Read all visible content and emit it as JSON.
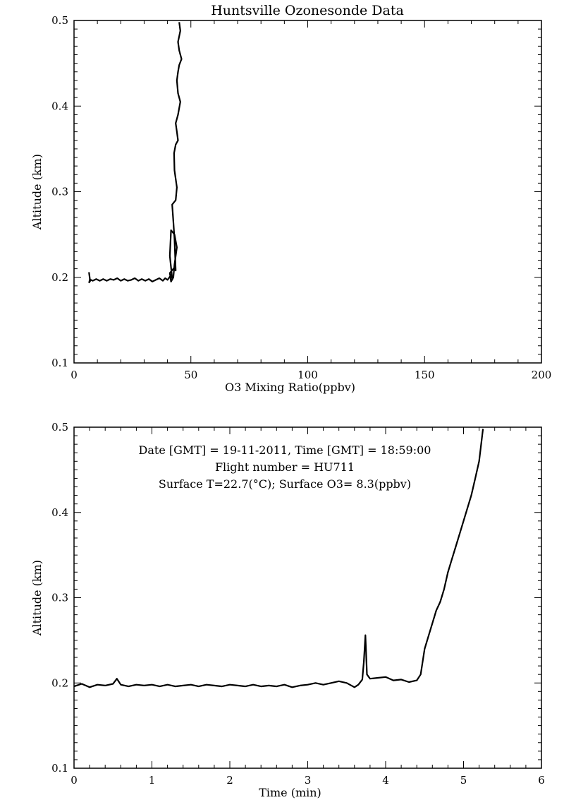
{
  "title": "Huntsville Ozonesonde Data",
  "colors": {
    "background": "#ffffff",
    "line": "#000000"
  },
  "chart_data": [
    {
      "type": "line",
      "xlabel": "O3 Mixing Ratio(ppbv)",
      "ylabel": "Altitude (km)",
      "xlim": [
        0,
        200
      ],
      "ylim": [
        0.1,
        0.5
      ],
      "xticks": [
        0,
        50,
        100,
        150,
        200
      ],
      "xtick_labels": [
        "0",
        "50",
        "100",
        "150",
        "200"
      ],
      "yticks": [
        0.1,
        0.2,
        0.3,
        0.4,
        0.5
      ],
      "ytick_labels": [
        "0.1",
        "0.2",
        "0.3",
        "0.4",
        "0.5"
      ],
      "grid": false,
      "series": [
        {
          "x": [
            6.4,
            6.8,
            6.5,
            7.2,
            8,
            9.5,
            11,
            12.5,
            14,
            15.5,
            17,
            18.5,
            20,
            21.5,
            23,
            24.5,
            26,
            27.5,
            29,
            30.5,
            32,
            33.5,
            35,
            36.5,
            38,
            39,
            40,
            40.8,
            41.5,
            42,
            41,
            41.5,
            43,
            44,
            43,
            42.5,
            41.5,
            41,
            42.5,
            43.5,
            43,
            42.5,
            42,
            43.5,
            44,
            43,
            42.8,
            43.5,
            44.5,
            44,
            43.5,
            44.5,
            45.5,
            44.5,
            44,
            44.5,
            45,
            46,
            45,
            44.5,
            45.5,
            45
          ],
          "y": [
            0.206,
            0.198,
            0.194,
            0.197,
            0.196,
            0.198,
            0.196,
            0.198,
            0.196,
            0.198,
            0.197,
            0.199,
            0.196,
            0.198,
            0.196,
            0.197,
            0.199,
            0.196,
            0.198,
            0.196,
            0.198,
            0.195,
            0.197,
            0.199,
            0.196,
            0.199,
            0.197,
            0.2,
            0.203,
            0.199,
            0.225,
            0.255,
            0.25,
            0.235,
            0.215,
            0.2,
            0.195,
            0.205,
            0.21,
            0.208,
            0.245,
            0.265,
            0.285,
            0.29,
            0.305,
            0.325,
            0.345,
            0.355,
            0.36,
            0.37,
            0.38,
            0.39,
            0.405,
            0.415,
            0.43,
            0.44,
            0.448,
            0.455,
            0.465,
            0.475,
            0.488,
            0.498
          ]
        }
      ]
    },
    {
      "type": "line",
      "xlabel": "Time (min)",
      "ylabel": "Altitude (km)",
      "xlim": [
        0,
        6
      ],
      "ylim": [
        0.1,
        0.5
      ],
      "xticks": [
        0,
        1,
        2,
        3,
        4,
        5,
        6
      ],
      "xtick_labels": [
        "0",
        "1",
        "2",
        "3",
        "4",
        "5",
        "6"
      ],
      "yticks": [
        0.1,
        0.2,
        0.3,
        0.4,
        0.5
      ],
      "ytick_labels": [
        "0.1",
        "0.2",
        "0.3",
        "0.4",
        "0.5"
      ],
      "grid": false,
      "annotations": [
        "Date [GMT] = 19-11-2011,  Time [GMT] = 18:59:00",
        "Flight number = HU711",
        "Surface T=22.7(°C); Surface O3= 8.3(ppbv)"
      ],
      "series": [
        {
          "x": [
            0,
            0.1,
            0.2,
            0.3,
            0.4,
            0.5,
            0.55,
            0.6,
            0.7,
            0.8,
            0.9,
            1.0,
            1.1,
            1.2,
            1.3,
            1.4,
            1.5,
            1.6,
            1.7,
            1.8,
            1.9,
            2.0,
            2.1,
            2.2,
            2.3,
            2.4,
            2.5,
            2.6,
            2.7,
            2.8,
            2.9,
            3.0,
            3.1,
            3.2,
            3.3,
            3.4,
            3.5,
            3.6,
            3.65,
            3.7,
            3.72,
            3.74,
            3.76,
            3.8,
            3.9,
            4.0,
            4.1,
            4.2,
            4.3,
            4.4,
            4.45,
            4.5,
            4.55,
            4.6,
            4.65,
            4.7,
            4.75,
            4.8,
            4.85,
            4.9,
            4.95,
            5.0,
            5.05,
            5.1,
            5.15,
            5.2,
            5.25
          ],
          "y": [
            0.196,
            0.199,
            0.195,
            0.198,
            0.197,
            0.199,
            0.205,
            0.198,
            0.196,
            0.198,
            0.197,
            0.198,
            0.196,
            0.198,
            0.196,
            0.197,
            0.198,
            0.196,
            0.198,
            0.197,
            0.196,
            0.198,
            0.197,
            0.196,
            0.198,
            0.196,
            0.197,
            0.196,
            0.198,
            0.195,
            0.197,
            0.198,
            0.2,
            0.198,
            0.2,
            0.202,
            0.2,
            0.195,
            0.198,
            0.204,
            0.225,
            0.256,
            0.21,
            0.205,
            0.206,
            0.207,
            0.203,
            0.204,
            0.201,
            0.203,
            0.21,
            0.24,
            0.255,
            0.27,
            0.285,
            0.295,
            0.31,
            0.33,
            0.345,
            0.36,
            0.375,
            0.39,
            0.405,
            0.42,
            0.44,
            0.46,
            0.498
          ]
        }
      ]
    }
  ]
}
